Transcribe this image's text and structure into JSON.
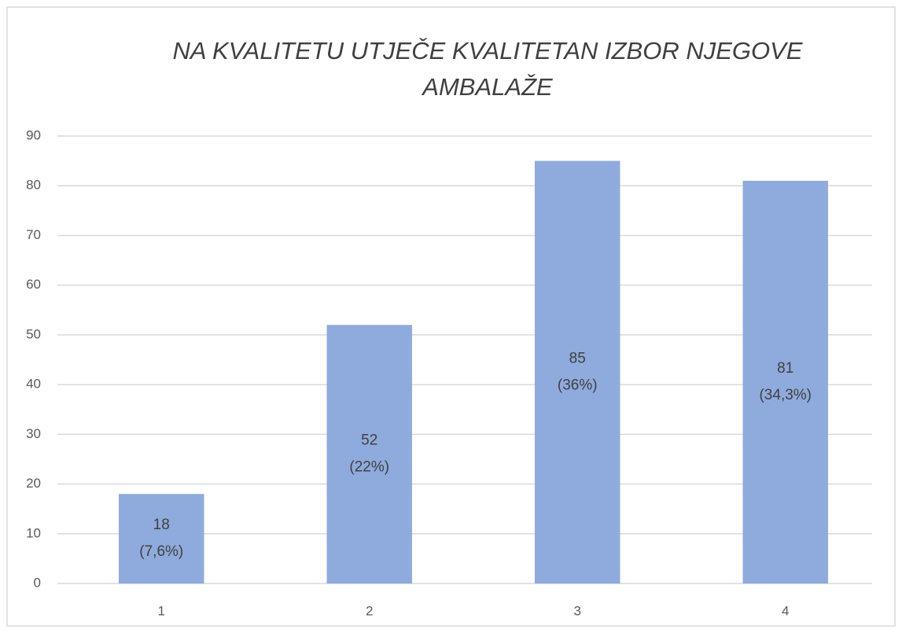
{
  "chart_data": {
    "type": "bar",
    "title": "NA KVALITETU UTJEČE KVALITETAN IZBOR NJEGOVE AMBALAŽE",
    "categories": [
      "1",
      "2",
      "3",
      "4"
    ],
    "values": [
      18,
      52,
      85,
      81
    ],
    "percent_labels": [
      "(7,6%)",
      "(22%)",
      "(36%)",
      "(34,3%)"
    ],
    "color": "#8faadc",
    "ylim": [
      0,
      90
    ],
    "yticks": [
      0,
      10,
      20,
      30,
      40,
      50,
      60,
      70,
      80,
      90
    ],
    "grid": true
  }
}
